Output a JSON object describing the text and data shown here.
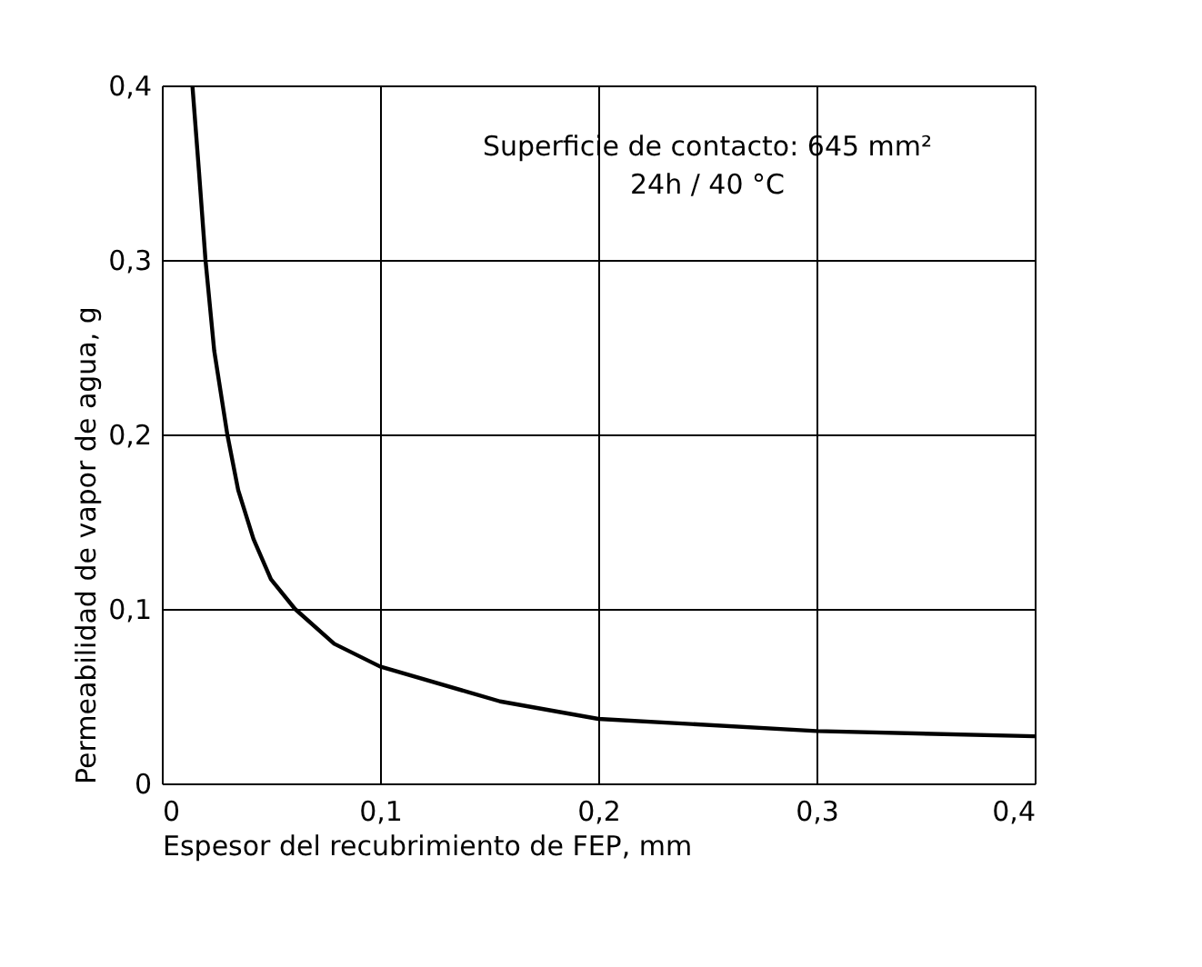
{
  "chart_data": {
    "type": "line",
    "xlabel": "Espesor del recubrimiento de FEP, mm",
    "ylabel": "Permeabilidad de vapor de agua, g",
    "x": [
      0.014,
      0.017,
      0.02,
      0.024,
      0.03,
      0.035,
      0.042,
      0.05,
      0.061,
      0.079,
      0.1,
      0.155,
      0.2,
      0.3,
      0.4
    ],
    "series": [
      {
        "color": "#000000",
        "values": [
          0.4,
          0.351,
          0.3,
          0.248,
          0.2,
          0.168,
          0.14,
          0.117,
          0.1,
          0.08,
          0.067,
          0.047,
          0.037,
          0.03,
          0.027
        ]
      }
    ],
    "xlim": [
      0,
      0.4
    ],
    "ylim": [
      0,
      0.4
    ],
    "xticks": [
      0,
      {
        "value": 0.1,
        "label": "0,1"
      },
      {
        "value": 0.2,
        "label": "0,2"
      },
      {
        "value": 0.3,
        "label": "0,3"
      },
      {
        "value": 0.4,
        "label": "0,4"
      }
    ],
    "yticks": [
      0,
      {
        "value": 0.1,
        "label": "0,1"
      },
      {
        "value": 0.2,
        "label": "0,2"
      },
      {
        "value": 0.3,
        "label": "0,3"
      },
      {
        "value": 0.4,
        "label": "0,4"
      }
    ],
    "grid": true,
    "marker": "none",
    "line_style": "solid",
    "annotations": [
      "Superficie de contacto: 645 mm²",
      "24h / 40 °C"
    ]
  }
}
